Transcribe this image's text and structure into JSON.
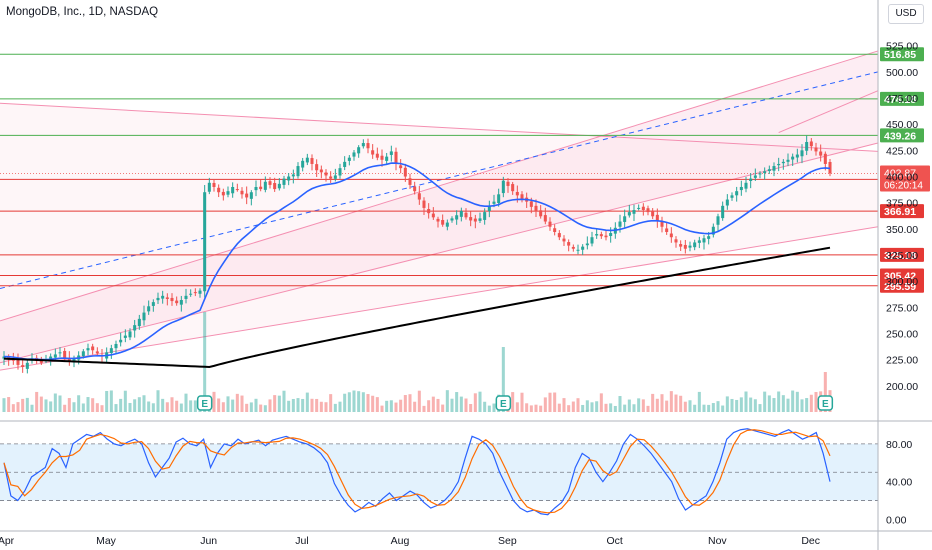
{
  "header": {
    "title": "MongoDB, Inc., 1D, NASDAQ",
    "currency": "USD"
  },
  "colors": {
    "up": "#26a69a",
    "down": "#ef5350",
    "ema": "#2962ff",
    "sma": "#000000",
    "green_line": "#4caf50",
    "red_line": "#e53935",
    "k_line": "#2962ff",
    "d_line": "#ff6d00",
    "channel_fill": "#fce4ec",
    "stoch_band": "#e3f2fd"
  },
  "chart_data": {
    "type": "candlestick",
    "title": "MongoDB, Inc., 1D, NASDAQ",
    "price_axis": {
      "ylim": [
        175,
        540
      ],
      "ticks": [
        "525.00",
        "500.00",
        "475.00",
        "450.00",
        "425.00",
        "400.00",
        "375.00",
        "350.00",
        "325.00",
        "300.00",
        "275.00",
        "250.00",
        "225.00",
        "200.00"
      ]
    },
    "time_axis": {
      "tick_labels": [
        "Apr",
        "May",
        "Jun",
        "Jul",
        "Aug",
        "Sep",
        "Oct",
        "Nov",
        "Dec"
      ]
    },
    "horizontal_levels": [
      {
        "value": 516.85,
        "label": "516.85",
        "color": "green"
      },
      {
        "value": 474.18,
        "label": "474.18",
        "color": "green"
      },
      {
        "value": 439.26,
        "label": "439.26",
        "color": "green"
      },
      {
        "value": 397.26,
        "label": "397.26",
        "color": "red"
      },
      {
        "value": 366.91,
        "label": "366.91",
        "color": "red"
      },
      {
        "value": 325.18,
        "label": "325.18",
        "color": "red"
      },
      {
        "value": 305.42,
        "label": "305.42",
        "color": "red"
      },
      {
        "value": 295.59,
        "label": "295.59",
        "color": "red"
      }
    ],
    "current_price": {
      "value": 402.87,
      "label": "402.87",
      "countdown": "06:20:14"
    },
    "close_series": [
      {
        "m": "Apr",
        "c": [
          228,
          226,
          224,
          220,
          218,
          222,
          226,
          224,
          222,
          225,
          228,
          230,
          232,
          227,
          224,
          226,
          229,
          233,
          236,
          234,
          231
        ]
      },
      {
        "m": "May",
        "c": [
          228,
          232,
          236,
          240,
          244,
          248,
          252,
          258,
          264,
          270,
          276,
          280,
          284,
          286,
          283,
          281,
          279,
          282,
          286,
          288,
          289,
          291
        ]
      },
      {
        "m": "Jun",
        "c": [
          385,
          394,
          390,
          385,
          382,
          386,
          390,
          388,
          383,
          380,
          385,
          390,
          388,
          395,
          392,
          388,
          393,
          398,
          400,
          402
        ]
      },
      {
        "m": "Jul",
        "c": [
          410,
          415,
          418,
          412,
          406,
          404,
          401,
          398,
          401,
          408,
          414,
          418,
          423,
          428,
          432,
          427,
          421,
          418,
          416,
          419,
          424
        ]
      },
      {
        "m": "Aug",
        "c": [
          412,
          408,
          400,
          392,
          386,
          378,
          370,
          365,
          361,
          357,
          354,
          356,
          360,
          363,
          367,
          361,
          358,
          357,
          360,
          366,
          372,
          376,
          383
        ]
      },
      {
        "m": "Sep",
        "c": [
          396,
          391,
          386,
          382,
          379,
          376,
          371,
          367,
          362,
          357,
          352,
          347,
          342,
          338,
          334,
          331,
          330,
          333,
          336,
          342,
          345,
          343,
          342
        ]
      },
      {
        "m": "Oct",
        "c": [
          346,
          351,
          357,
          362,
          366,
          368,
          370,
          368,
          366,
          362,
          357,
          352,
          347,
          342,
          337,
          333,
          331,
          334,
          337,
          339,
          341,
          343
        ]
      },
      {
        "m": "Nov",
        "c": [
          352,
          362,
          372,
          378,
          382,
          386,
          390,
          394,
          398,
          401,
          403,
          405,
          407,
          410,
          412,
          414,
          416,
          419,
          421,
          425
        ]
      },
      {
        "m": "Dec",
        "c": [
          433,
          429,
          424,
          420,
          412,
          403
        ]
      }
    ],
    "ema_series": {
      "name": "",
      "color": "blue"
    },
    "sma_series": {
      "name": "",
      "color": "black"
    },
    "volume_events": [
      "E",
      "E",
      "E"
    ],
    "stochastic": {
      "ylim": [
        -8,
        100
      ],
      "ticks": [
        "80.00",
        "40.00",
        "0.00"
      ],
      "upper_band": 80,
      "lower_band": 20,
      "mid": 50,
      "k_values": [
        60,
        25,
        20,
        30,
        45,
        50,
        55,
        75,
        70,
        55,
        80,
        85,
        90,
        88,
        92,
        85,
        80,
        78,
        82,
        85,
        80,
        60,
        45,
        55,
        65,
        82,
        86,
        80,
        78,
        85,
        55,
        70,
        80,
        78,
        85,
        80,
        82,
        84,
        78,
        84,
        86,
        88,
        85,
        82,
        80,
        76,
        70,
        60,
        38,
        25,
        15,
        8,
        12,
        18,
        14,
        22,
        28,
        20,
        25,
        30,
        26,
        18,
        12,
        15,
        20,
        28,
        40,
        65,
        88,
        85,
        80,
        70,
        50,
        35,
        20,
        12,
        8,
        10,
        6,
        5,
        12,
        18,
        30,
        55,
        70,
        65,
        50,
        40,
        50,
        62,
        80,
        90,
        85,
        78,
        70,
        60,
        50,
        40,
        22,
        10,
        15,
        20,
        25,
        40,
        60,
        85,
        92,
        95,
        96,
        94,
        92,
        90,
        88,
        92,
        95,
        90,
        85,
        88,
        92,
        70,
        40
      ]
    }
  }
}
